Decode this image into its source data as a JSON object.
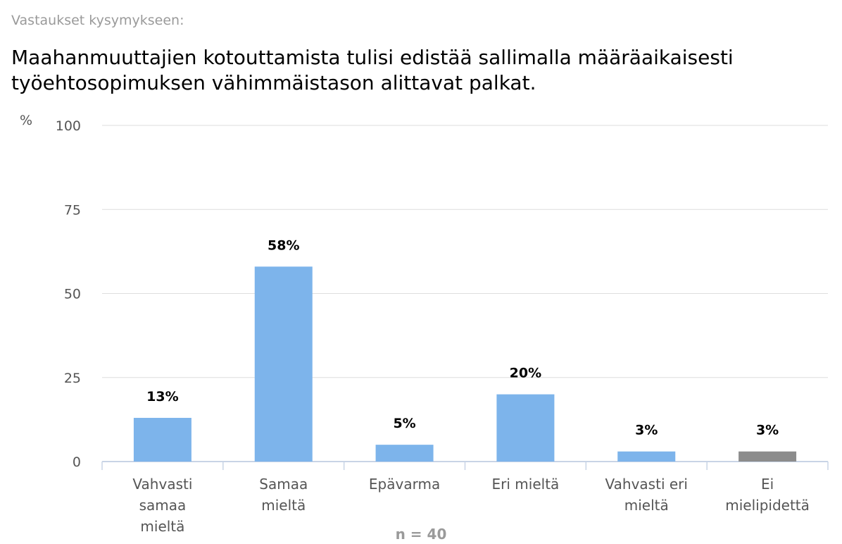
{
  "header": {
    "question_label": "Vastaukset kysymykseen:",
    "question_text": "Maahanmuuttajien kotouttamista tulisi edistää sallimalla määräaikaisesti työehtosopimuksen vähimmäistason alittavat palkat."
  },
  "chart_data": {
    "type": "bar",
    "ylabel": "%",
    "ylim": [
      0,
      100
    ],
    "yticks": [
      0,
      25,
      50,
      75,
      100
    ],
    "grid": true,
    "categories": [
      [
        "Vahvasti",
        "samaa",
        "mieltä"
      ],
      [
        "Samaa",
        "mieltä"
      ],
      [
        "Epävarma"
      ],
      [
        "Eri mieltä"
      ],
      [
        "Vahvasti eri",
        "mieltä"
      ],
      [
        "Ei",
        "mielipidettä"
      ]
    ],
    "values": [
      13,
      58,
      5,
      20,
      3,
      3
    ],
    "data_labels": [
      "13%",
      "58%",
      "5%",
      "20%",
      "3%",
      "3%"
    ],
    "colors": [
      "#7db4eb",
      "#7db4eb",
      "#7db4eb",
      "#7db4eb",
      "#7db4eb",
      "#8c8c8c"
    ],
    "footnote": "n = 40"
  }
}
